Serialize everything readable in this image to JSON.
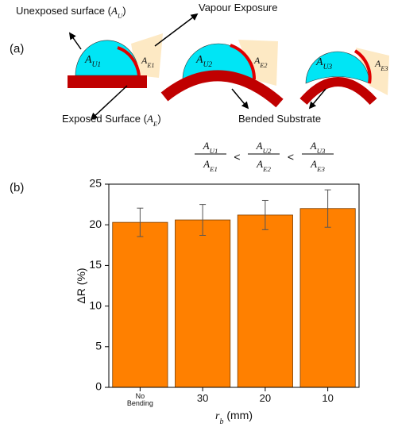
{
  "panel_a": {
    "label": "(a)",
    "unexposed": {
      "prefix": "Unexposed surface (",
      "base": "A",
      "sub": "U",
      "suffix": ")"
    },
    "vapour": "Vapour Exposure",
    "exposed": {
      "prefix": "Exposed Surface (",
      "base": "A",
      "sub": "E",
      "suffix": ")"
    },
    "substrate": "Bended Substrate",
    "drops": [
      {
        "unexposed": {
          "base": "A",
          "sub": "U1"
        },
        "exposed": {
          "base": "A",
          "sub": "E1"
        }
      },
      {
        "unexposed": {
          "base": "A",
          "sub": "U2"
        },
        "exposed": {
          "base": "A",
          "sub": "E2"
        }
      },
      {
        "unexposed": {
          "base": "A",
          "sub": "U3"
        },
        "exposed": {
          "base": "A",
          "sub": "E3"
        }
      }
    ],
    "inequality": {
      "relation": "<",
      "terms": [
        {
          "num": {
            "base": "A",
            "sub": "U1"
          },
          "den": {
            "base": "A",
            "sub": "E1"
          }
        },
        {
          "num": {
            "base": "A",
            "sub": "U2"
          },
          "den": {
            "base": "A",
            "sub": "E2"
          }
        },
        {
          "num": {
            "base": "A",
            "sub": "U3"
          },
          "den": {
            "base": "A",
            "sub": "E3"
          }
        }
      ]
    }
  },
  "panel_b": {
    "label": "(b)"
  },
  "chart_data": {
    "type": "bar",
    "categories": [
      "No Bending",
      "30",
      "20",
      "10"
    ],
    "values": [
      20.3,
      20.6,
      21.2,
      22.0
    ],
    "errors": [
      1.75,
      1.9,
      1.8,
      2.3
    ],
    "color": "#ff8000",
    "y_label": "ΔR (%)",
    "x_label": {
      "base": "r",
      "sub": "b",
      "suffix": " (mm)"
    },
    "ylim": [
      0,
      25
    ],
    "yticks": [
      0,
      5,
      10,
      15,
      20,
      25
    ]
  }
}
